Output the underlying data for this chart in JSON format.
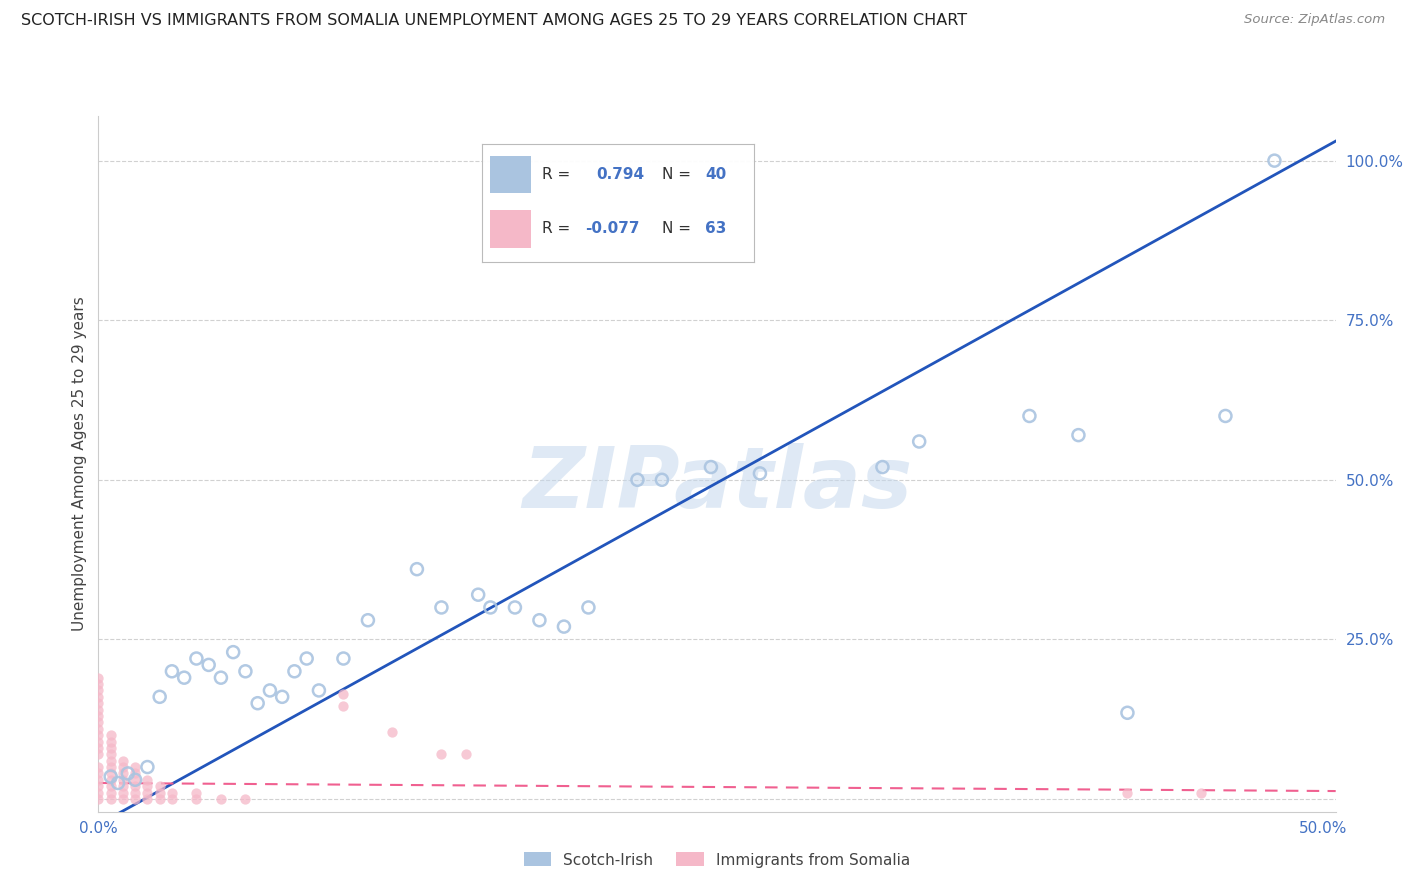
{
  "title": "SCOTCH-IRISH VS IMMIGRANTS FROM SOMALIA UNEMPLOYMENT AMONG AGES 25 TO 29 YEARS CORRELATION CHART",
  "source": "Source: ZipAtlas.com",
  "ylabel": "Unemployment Among Ages 25 to 29 years",
  "xlim": [
    0,
    0.505
  ],
  "ylim": [
    -0.02,
    1.07
  ],
  "x_ticks": [
    0.0,
    0.25,
    0.5
  ],
  "x_tick_labels": [
    "0.0%",
    "",
    "50.0%"
  ],
  "y_ticks": [
    0.0,
    0.25,
    0.5,
    0.75,
    1.0
  ],
  "y_tick_labels": [
    "",
    "25.0%",
    "50.0%",
    "75.0%",
    "100.0%"
  ],
  "scotch_irish_R": 0.794,
  "scotch_irish_N": 40,
  "somalia_R": -0.077,
  "somalia_N": 63,
  "scotch_irish_color": "#aac4e0",
  "somalia_color": "#f5b8c8",
  "scotch_irish_line_color": "#2255bb",
  "somalia_line_color": "#f06090",
  "watermark": "ZIPatlas",
  "legend_label_1": "Scotch-Irish",
  "legend_label_2": "Immigrants from Somalia",
  "scotch_irish_points": [
    [
      0.005,
      0.035
    ],
    [
      0.008,
      0.025
    ],
    [
      0.012,
      0.04
    ],
    [
      0.015,
      0.03
    ],
    [
      0.02,
      0.05
    ],
    [
      0.025,
      0.16
    ],
    [
      0.03,
      0.2
    ],
    [
      0.035,
      0.19
    ],
    [
      0.04,
      0.22
    ],
    [
      0.045,
      0.21
    ],
    [
      0.05,
      0.19
    ],
    [
      0.055,
      0.23
    ],
    [
      0.06,
      0.2
    ],
    [
      0.065,
      0.15
    ],
    [
      0.07,
      0.17
    ],
    [
      0.075,
      0.16
    ],
    [
      0.08,
      0.2
    ],
    [
      0.085,
      0.22
    ],
    [
      0.09,
      0.17
    ],
    [
      0.1,
      0.22
    ],
    [
      0.11,
      0.28
    ],
    [
      0.13,
      0.36
    ],
    [
      0.14,
      0.3
    ],
    [
      0.155,
      0.32
    ],
    [
      0.16,
      0.3
    ],
    [
      0.17,
      0.3
    ],
    [
      0.18,
      0.28
    ],
    [
      0.19,
      0.27
    ],
    [
      0.2,
      0.3
    ],
    [
      0.22,
      0.5
    ],
    [
      0.23,
      0.5
    ],
    [
      0.25,
      0.52
    ],
    [
      0.27,
      0.51
    ],
    [
      0.32,
      0.52
    ],
    [
      0.335,
      0.56
    ],
    [
      0.38,
      0.6
    ],
    [
      0.4,
      0.57
    ],
    [
      0.42,
      0.135
    ],
    [
      0.46,
      0.6
    ],
    [
      0.48,
      1.0
    ]
  ],
  "somalia_points": [
    [
      0.0,
      0.0
    ],
    [
      0.0,
      0.01
    ],
    [
      0.0,
      0.02
    ],
    [
      0.0,
      0.03
    ],
    [
      0.0,
      0.04
    ],
    [
      0.0,
      0.05
    ],
    [
      0.0,
      0.07
    ],
    [
      0.0,
      0.08
    ],
    [
      0.0,
      0.09
    ],
    [
      0.0,
      0.1
    ],
    [
      0.0,
      0.11
    ],
    [
      0.0,
      0.12
    ],
    [
      0.0,
      0.13
    ],
    [
      0.0,
      0.14
    ],
    [
      0.0,
      0.15
    ],
    [
      0.0,
      0.16
    ],
    [
      0.0,
      0.17
    ],
    [
      0.0,
      0.18
    ],
    [
      0.0,
      0.19
    ],
    [
      0.005,
      0.0
    ],
    [
      0.005,
      0.01
    ],
    [
      0.005,
      0.02
    ],
    [
      0.005,
      0.03
    ],
    [
      0.005,
      0.04
    ],
    [
      0.005,
      0.05
    ],
    [
      0.005,
      0.06
    ],
    [
      0.005,
      0.07
    ],
    [
      0.005,
      0.08
    ],
    [
      0.005,
      0.09
    ],
    [
      0.005,
      0.1
    ],
    [
      0.01,
      0.0
    ],
    [
      0.01,
      0.01
    ],
    [
      0.01,
      0.02
    ],
    [
      0.01,
      0.03
    ],
    [
      0.01,
      0.04
    ],
    [
      0.01,
      0.05
    ],
    [
      0.01,
      0.06
    ],
    [
      0.015,
      0.0
    ],
    [
      0.015,
      0.01
    ],
    [
      0.015,
      0.02
    ],
    [
      0.015,
      0.03
    ],
    [
      0.015,
      0.04
    ],
    [
      0.015,
      0.05
    ],
    [
      0.02,
      0.0
    ],
    [
      0.02,
      0.01
    ],
    [
      0.02,
      0.02
    ],
    [
      0.02,
      0.03
    ],
    [
      0.025,
      0.0
    ],
    [
      0.025,
      0.01
    ],
    [
      0.025,
      0.02
    ],
    [
      0.03,
      0.0
    ],
    [
      0.03,
      0.01
    ],
    [
      0.04,
      0.0
    ],
    [
      0.04,
      0.01
    ],
    [
      0.05,
      0.0
    ],
    [
      0.06,
      0.0
    ],
    [
      0.1,
      0.145
    ],
    [
      0.1,
      0.165
    ],
    [
      0.12,
      0.105
    ],
    [
      0.14,
      0.07
    ],
    [
      0.15,
      0.07
    ],
    [
      0.42,
      0.01
    ],
    [
      0.45,
      0.01
    ]
  ],
  "background_color": "#ffffff",
  "grid_color": "#cccccc",
  "tick_color": "#4472c4"
}
